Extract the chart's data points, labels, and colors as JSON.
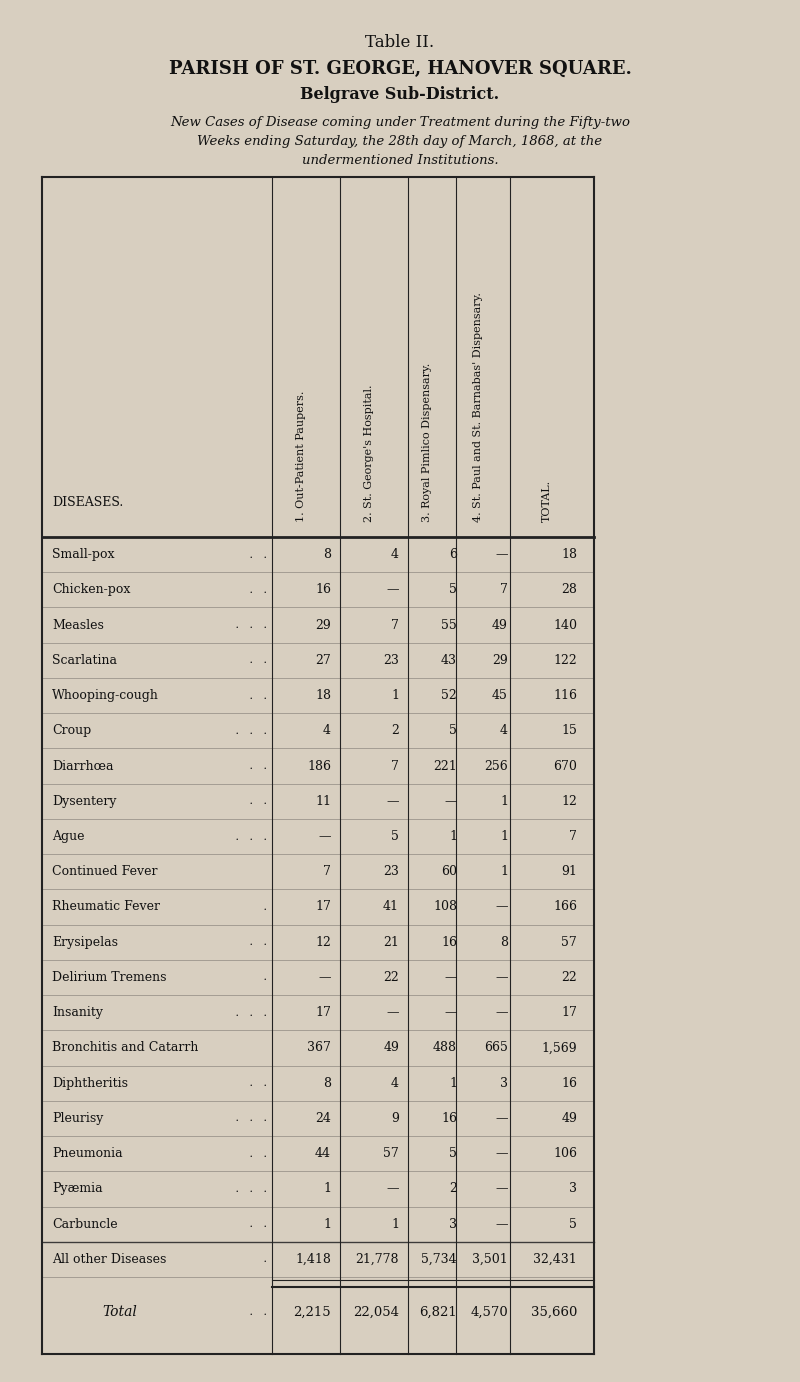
{
  "title1": "Table II.",
  "title2": "PARISH OF ST. GEORGE, HANOVER SQUARE.",
  "title3": "Belgrave Sub-District.",
  "subtitle_lines": [
    "New Cases of Disease coming under Treatment during the Fifty-two",
    "Weeks ending Saturday, the 28th day of March, 1868, at the",
    "undermentioned Institutions."
  ],
  "col_headers_rotated": [
    "1. Out-Patient Paupers.",
    "2. St. George's Hospital.",
    "3. Royal Pimlico Dispensary.",
    "4. St. Paul and St. Barnabas' Dispensary.",
    "TOTAL."
  ],
  "diseases": [
    "Small-pox",
    "Chicken-pox",
    "Measles",
    "Scarlatina",
    "Whooping-cough",
    "Croup",
    "Diarrhœa",
    "Dysentery",
    "Ague",
    "Continued Fever",
    "Rheumatic Fever",
    "Erysipelas",
    "Delirium Tremens",
    "Insanity",
    "Bronchitis and Catarrh",
    "Diphtheritis",
    "Pleurisy",
    "Pneumonia",
    "Pyæmia",
    "Carbuncle",
    "All other Diseases"
  ],
  "disease_dots": [
    " .   .",
    " .   .",
    " .   .   .",
    " .   .",
    " .   .",
    " .   .   .",
    " .   .",
    " .   .",
    " .   .   .",
    "",
    " .",
    " .   .",
    " .",
    " .   .   .",
    "",
    " .   .",
    " .   .   .",
    " .   .",
    " .   .   .",
    " .   .",
    " ."
  ],
  "col1": [
    "8",
    "16",
    "29",
    "27",
    "18",
    "4",
    "186",
    "11",
    "—",
    "7",
    "17",
    "12",
    "—",
    "17",
    "367",
    "8",
    "24",
    "44",
    "1",
    "1",
    "1,418"
  ],
  "col2": [
    "4",
    "—",
    "7",
    "23",
    "1",
    "2",
    "7",
    "—",
    "5",
    "23",
    "41",
    "21",
    "22",
    "—",
    "49",
    "4",
    "9",
    "57",
    "—",
    "1",
    "21,778"
  ],
  "col3": [
    "6",
    "5",
    "55",
    "43",
    "52",
    "5",
    "221",
    "—",
    "1",
    "60",
    "108",
    "16",
    "—",
    "—",
    "488",
    "1",
    "16",
    "5",
    "2",
    "3",
    "5,734"
  ],
  "col4": [
    "—",
    "7",
    "49",
    "29",
    "45",
    "4",
    "256",
    "1",
    "1",
    "1",
    "—",
    "8",
    "—",
    "—",
    "665",
    "3",
    "—",
    "—",
    "—",
    "—",
    "3,501"
  ],
  "total": [
    "18",
    "28",
    "140",
    "122",
    "116",
    "15",
    "670",
    "12",
    "7",
    "91",
    "166",
    "57",
    "22",
    "17",
    "1,569",
    "16",
    "49",
    "106",
    "3",
    "5",
    "32,431"
  ],
  "total_row_label": "Total",
  "total_row_dots": " .   .",
  "total_row": [
    "2,215",
    "22,054",
    "6,821",
    "4,570",
    "35,660"
  ],
  "bg_color": "#d8cfc0",
  "table_bg": "#ddd6c6",
  "text_color": "#111111",
  "line_color": "#222222"
}
